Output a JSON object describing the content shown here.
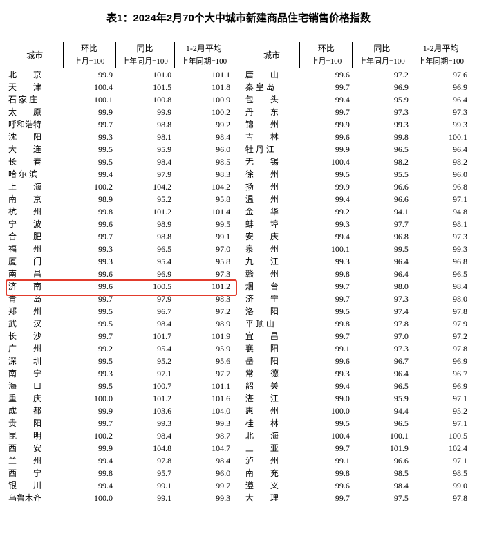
{
  "title": "表1：2024年2月70个大中城市新建商品住宅销售价格指数",
  "header": {
    "city": "城市",
    "mom": "环比",
    "yoy": "同比",
    "avg": "1-2月平均",
    "mom_sub": "上月=100",
    "yoy_sub": "上年同月=100",
    "avg_sub": "上年同期=100"
  },
  "highlight_row_index": 17,
  "highlight_color": "#e23b2c",
  "rows_left": [
    {
      "city": "北　　京",
      "mom": "99.9",
      "yoy": "101.0",
      "avg": "101.1"
    },
    {
      "city": "天　　津",
      "mom": "100.4",
      "yoy": "101.5",
      "avg": "101.8"
    },
    {
      "city": "石 家 庄",
      "mom": "100.1",
      "yoy": "100.8",
      "avg": "100.9"
    },
    {
      "city": "太　　原",
      "mom": "99.9",
      "yoy": "99.9",
      "avg": "100.2"
    },
    {
      "city": "呼和浩特",
      "mom": "99.7",
      "yoy": "98.8",
      "avg": "99.2"
    },
    {
      "city": "沈　　阳",
      "mom": "99.3",
      "yoy": "98.1",
      "avg": "98.4"
    },
    {
      "city": "大　　连",
      "mom": "99.5",
      "yoy": "95.9",
      "avg": "96.0"
    },
    {
      "city": "长　　春",
      "mom": "99.5",
      "yoy": "98.4",
      "avg": "98.5"
    },
    {
      "city": "哈 尔 滨",
      "mom": "99.4",
      "yoy": "97.9",
      "avg": "98.3"
    },
    {
      "city": "上　　海",
      "mom": "100.2",
      "yoy": "104.2",
      "avg": "104.2"
    },
    {
      "city": "南　　京",
      "mom": "98.9",
      "yoy": "95.2",
      "avg": "95.8"
    },
    {
      "city": "杭　　州",
      "mom": "99.8",
      "yoy": "101.2",
      "avg": "101.4"
    },
    {
      "city": "宁　　波",
      "mom": "99.6",
      "yoy": "98.9",
      "avg": "99.5"
    },
    {
      "city": "合　　肥",
      "mom": "99.7",
      "yoy": "98.8",
      "avg": "99.1"
    },
    {
      "city": "福　　州",
      "mom": "99.3",
      "yoy": "96.5",
      "avg": "97.0"
    },
    {
      "city": "厦　　门",
      "mom": "99.3",
      "yoy": "95.4",
      "avg": "95.8"
    },
    {
      "city": "南　　昌",
      "mom": "99.6",
      "yoy": "96.9",
      "avg": "97.3"
    },
    {
      "city": "济　　南",
      "mom": "99.6",
      "yoy": "100.5",
      "avg": "101.2"
    },
    {
      "city": "青　　岛",
      "mom": "99.7",
      "yoy": "97.9",
      "avg": "98.3"
    },
    {
      "city": "郑　　州",
      "mom": "99.5",
      "yoy": "96.7",
      "avg": "97.2"
    },
    {
      "city": "武　　汉",
      "mom": "99.5",
      "yoy": "98.4",
      "avg": "98.9"
    },
    {
      "city": "长　　沙",
      "mom": "99.7",
      "yoy": "101.7",
      "avg": "101.9"
    },
    {
      "city": "广　　州",
      "mom": "99.2",
      "yoy": "95.4",
      "avg": "95.9"
    },
    {
      "city": "深　　圳",
      "mom": "99.5",
      "yoy": "95.2",
      "avg": "95.6"
    },
    {
      "city": "南　　宁",
      "mom": "99.3",
      "yoy": "97.1",
      "avg": "97.7"
    },
    {
      "city": "海　　口",
      "mom": "99.5",
      "yoy": "100.7",
      "avg": "101.1"
    },
    {
      "city": "重　　庆",
      "mom": "100.0",
      "yoy": "101.2",
      "avg": "101.6"
    },
    {
      "city": "成　　都",
      "mom": "99.9",
      "yoy": "103.6",
      "avg": "104.0"
    },
    {
      "city": "贵　　阳",
      "mom": "99.7",
      "yoy": "99.3",
      "avg": "99.3"
    },
    {
      "city": "昆　　明",
      "mom": "100.2",
      "yoy": "98.4",
      "avg": "98.7"
    },
    {
      "city": "西　　安",
      "mom": "99.9",
      "yoy": "104.8",
      "avg": "104.7"
    },
    {
      "city": "兰　　州",
      "mom": "99.4",
      "yoy": "97.8",
      "avg": "98.4"
    },
    {
      "city": "西　　宁",
      "mom": "99.8",
      "yoy": "95.7",
      "avg": "96.0"
    },
    {
      "city": "银　　川",
      "mom": "99.4",
      "yoy": "99.1",
      "avg": "99.7"
    },
    {
      "city": "乌鲁木齐",
      "mom": "100.0",
      "yoy": "99.1",
      "avg": "99.3"
    }
  ],
  "rows_right": [
    {
      "city": "唐　　山",
      "mom": "99.6",
      "yoy": "97.2",
      "avg": "97.6"
    },
    {
      "city": "秦 皇 岛",
      "mom": "99.7",
      "yoy": "96.9",
      "avg": "96.9"
    },
    {
      "city": "包　　头",
      "mom": "99.4",
      "yoy": "95.9",
      "avg": "96.4"
    },
    {
      "city": "丹　　东",
      "mom": "99.7",
      "yoy": "97.3",
      "avg": "97.3"
    },
    {
      "city": "锦　　州",
      "mom": "99.9",
      "yoy": "99.3",
      "avg": "99.3"
    },
    {
      "city": "吉　　林",
      "mom": "99.6",
      "yoy": "99.8",
      "avg": "100.1"
    },
    {
      "city": "牡 丹 江",
      "mom": "99.9",
      "yoy": "96.5",
      "avg": "96.4"
    },
    {
      "city": "无　　锡",
      "mom": "100.4",
      "yoy": "98.2",
      "avg": "98.2"
    },
    {
      "city": "徐　　州",
      "mom": "99.5",
      "yoy": "95.5",
      "avg": "96.0"
    },
    {
      "city": "扬　　州",
      "mom": "99.9",
      "yoy": "96.6",
      "avg": "96.8"
    },
    {
      "city": "温　　州",
      "mom": "99.4",
      "yoy": "96.6",
      "avg": "97.1"
    },
    {
      "city": "金　　华",
      "mom": "99.2",
      "yoy": "94.1",
      "avg": "94.8"
    },
    {
      "city": "蚌　　埠",
      "mom": "99.3",
      "yoy": "97.7",
      "avg": "98.1"
    },
    {
      "city": "安　　庆",
      "mom": "99.4",
      "yoy": "96.8",
      "avg": "97.3"
    },
    {
      "city": "泉　　州",
      "mom": "100.1",
      "yoy": "99.5",
      "avg": "99.3"
    },
    {
      "city": "九　　江",
      "mom": "99.3",
      "yoy": "96.4",
      "avg": "96.8"
    },
    {
      "city": "赣　　州",
      "mom": "99.8",
      "yoy": "96.4",
      "avg": "96.5"
    },
    {
      "city": "烟　　台",
      "mom": "99.7",
      "yoy": "98.0",
      "avg": "98.4"
    },
    {
      "city": "济　　宁",
      "mom": "99.7",
      "yoy": "97.3",
      "avg": "98.0"
    },
    {
      "city": "洛　　阳",
      "mom": "99.5",
      "yoy": "97.4",
      "avg": "97.8"
    },
    {
      "city": "平 顶 山",
      "mom": "99.8",
      "yoy": "97.8",
      "avg": "97.9"
    },
    {
      "city": "宜　　昌",
      "mom": "99.7",
      "yoy": "97.0",
      "avg": "97.2"
    },
    {
      "city": "襄　　阳",
      "mom": "99.1",
      "yoy": "97.3",
      "avg": "97.8"
    },
    {
      "city": "岳　　阳",
      "mom": "99.6",
      "yoy": "96.7",
      "avg": "96.9"
    },
    {
      "city": "常　　德",
      "mom": "99.3",
      "yoy": "96.4",
      "avg": "96.7"
    },
    {
      "city": "韶　　关",
      "mom": "99.4",
      "yoy": "96.5",
      "avg": "96.9"
    },
    {
      "city": "湛　　江",
      "mom": "99.0",
      "yoy": "95.9",
      "avg": "97.1"
    },
    {
      "city": "惠　　州",
      "mom": "100.0",
      "yoy": "94.4",
      "avg": "95.2"
    },
    {
      "city": "桂　　林",
      "mom": "99.5",
      "yoy": "96.5",
      "avg": "97.1"
    },
    {
      "city": "北　　海",
      "mom": "100.4",
      "yoy": "100.1",
      "avg": "100.5"
    },
    {
      "city": "三　　亚",
      "mom": "99.7",
      "yoy": "101.9",
      "avg": "102.4"
    },
    {
      "city": "泸　　州",
      "mom": "99.1",
      "yoy": "96.6",
      "avg": "97.1"
    },
    {
      "city": "南　　充",
      "mom": "99.8",
      "yoy": "98.5",
      "avg": "98.5"
    },
    {
      "city": "遵　　义",
      "mom": "99.6",
      "yoy": "98.4",
      "avg": "99.0"
    },
    {
      "city": "大　　理",
      "mom": "99.7",
      "yoy": "97.5",
      "avg": "97.8"
    }
  ]
}
